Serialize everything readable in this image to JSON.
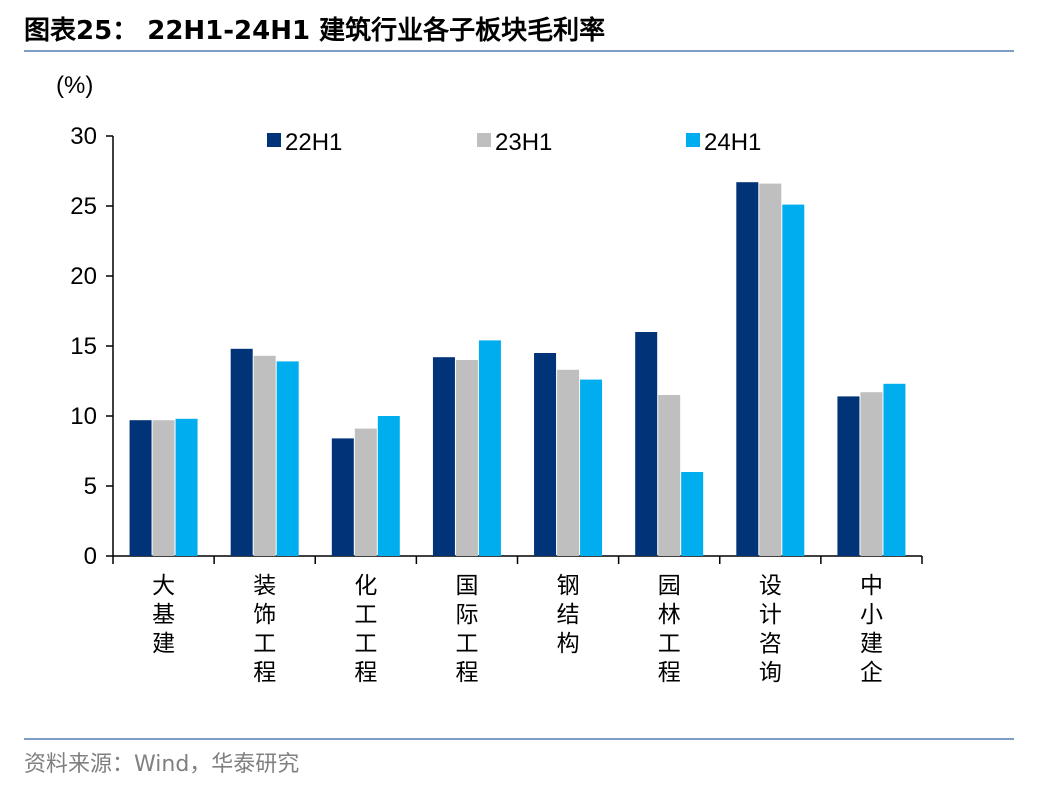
{
  "header": {
    "title": "图表25： 22H1-24H1 建筑行业各子板块毛利率"
  },
  "footer": {
    "source": "资料来源：Wind，华泰研究"
  },
  "chart_data": {
    "type": "bar",
    "title": "图表25： 22H1-24H1 建筑行业各子板块毛利率",
    "ylabel": "(%)",
    "xlabel": "",
    "ylim": [
      0,
      30
    ],
    "yticks": [
      0,
      5,
      10,
      15,
      20,
      25,
      30
    ],
    "legend_position": "top",
    "grid": false,
    "categories": [
      "大基建",
      "装饰工程",
      "化工工程",
      "国际工程",
      "钢结构",
      "园林工程",
      "设计咨询",
      "中小建企"
    ],
    "series": [
      {
        "name": "22H1",
        "color": "#003378",
        "values": [
          9.7,
          14.8,
          8.4,
          14.2,
          14.5,
          16.0,
          26.7,
          11.4
        ]
      },
      {
        "name": "23H1",
        "color": "#bfbfbf",
        "values": [
          9.7,
          14.3,
          9.1,
          14.0,
          13.3,
          11.5,
          26.6,
          11.7
        ]
      },
      {
        "name": "24H1",
        "color": "#00aeef",
        "values": [
          9.8,
          13.9,
          10.0,
          15.4,
          12.6,
          6.0,
          25.1,
          12.3
        ]
      }
    ]
  }
}
